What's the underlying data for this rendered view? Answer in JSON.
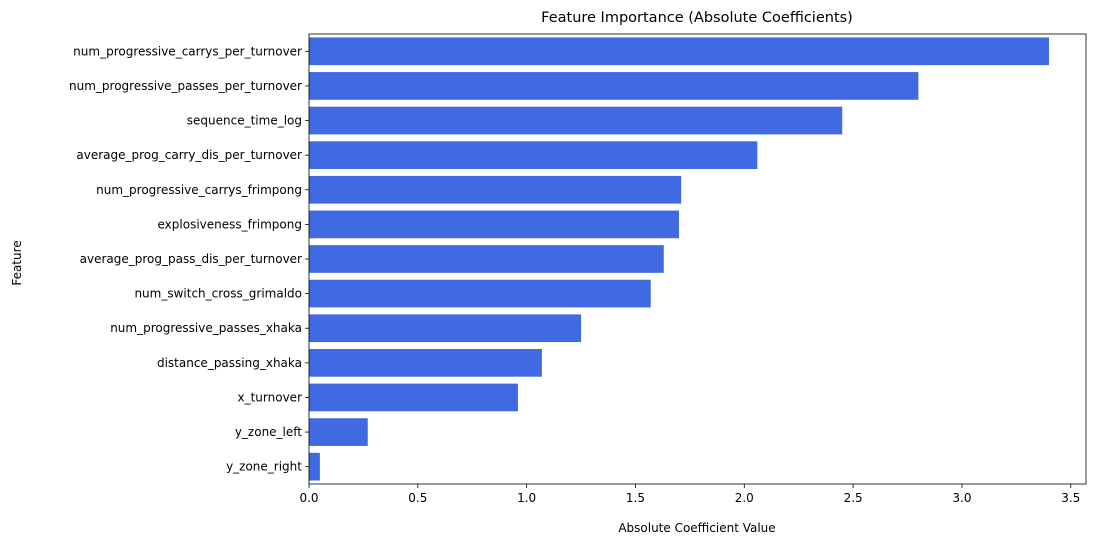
{
  "chart_data": {
    "type": "bar",
    "orientation": "horizontal",
    "title": "Feature Importance (Absolute Coefficients)",
    "xlabel": "Absolute Coefficient Value",
    "ylabel": "Feature",
    "xlim": [
      0,
      3.57
    ],
    "xticks": [
      0.0,
      0.5,
      1.0,
      1.5,
      2.0,
      2.5,
      3.0,
      3.5
    ],
    "xtick_labels": [
      "0.0",
      "0.5",
      "1.0",
      "1.5",
      "2.0",
      "2.5",
      "3.0",
      "3.5"
    ],
    "grid": false,
    "bar_color": "#4169e1",
    "categories": [
      "num_progressive_carrys_per_turnover",
      "num_progressive_passes_per_turnover",
      "sequence_time_log",
      "average_prog_carry_dis_per_turnover",
      "num_progressive_carrys_frimpong",
      "explosiveness_frimpong",
      "average_prog_pass_dis_per_turnover",
      "num_switch_cross_grimaldo",
      "num_progressive_passes_xhaka",
      "distance_passing_xhaka",
      "x_turnover",
      "y_zone_left",
      "y_zone_right"
    ],
    "values": [
      3.4,
      2.8,
      2.45,
      2.06,
      1.71,
      1.7,
      1.63,
      1.57,
      1.25,
      1.07,
      0.96,
      0.27,
      0.05
    ]
  }
}
